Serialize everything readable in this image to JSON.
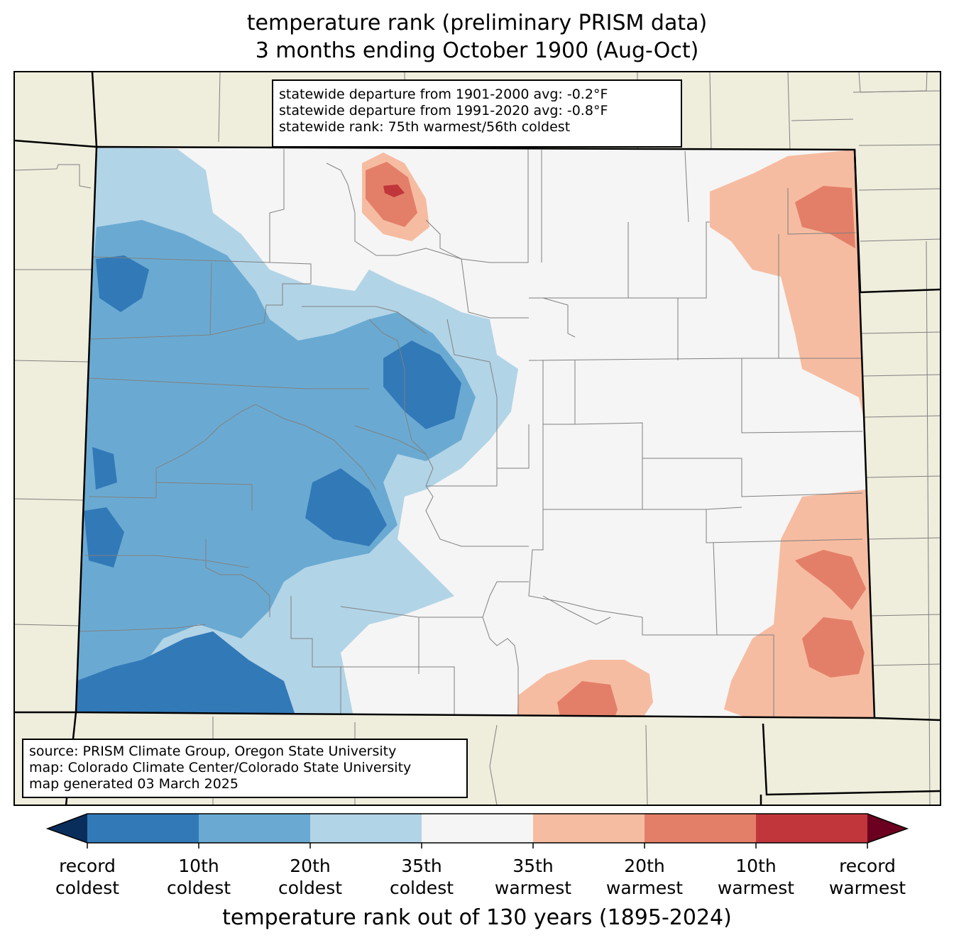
{
  "title": {
    "line1": "temperature rank (preliminary PRISM data)",
    "line2": "3 months ending October 1900 (Aug-Oct)"
  },
  "stats_box": {
    "line1": "statewide departure from 1901-2000 avg: -0.2°F",
    "line2": "statewide departure from 1991-2020 avg: -0.8°F",
    "line3": "statewide rank: 75th warmest/56th coldest"
  },
  "source_box": {
    "line1": "source: PRISM Climate Group, Oregon State University",
    "line2": "map: Colorado Climate Center/Colorado State University",
    "line3": "map generated 03 March 2025"
  },
  "colorbar": {
    "label": "temperature rank out of 130 years (1895-2024)",
    "ticks": [
      {
        "line1": "record",
        "line2": "coldest"
      },
      {
        "line1": "10th",
        "line2": "coldest"
      },
      {
        "line1": "20th",
        "line2": "coldest"
      },
      {
        "line1": "35th",
        "line2": "coldest"
      },
      {
        "line1": "35th",
        "line2": "warmest"
      },
      {
        "line1": "20th",
        "line2": "warmest"
      },
      {
        "line1": "10th",
        "line2": "warmest"
      },
      {
        "line1": "record",
        "line2": "warmest"
      }
    ],
    "colors": {
      "extend_cold": "#0a2e5c",
      "record_to_10th_coldest": "#3279b8",
      "10th_to_20th_coldest": "#6aaad2",
      "20th_to_35th_coldest": "#b2d4e7",
      "near_normal": "#f5f5f5",
      "35th_to_20th_warmest": "#f6bca1",
      "20th_to_10th_warmest": "#e37f69",
      "10th_to_record_warmest": "#c1363a",
      "extend_warm": "#6b0020"
    }
  },
  "map_colors": {
    "land_outside": "#efeddc",
    "state_border": "#000000",
    "county_border": "#808080"
  }
}
